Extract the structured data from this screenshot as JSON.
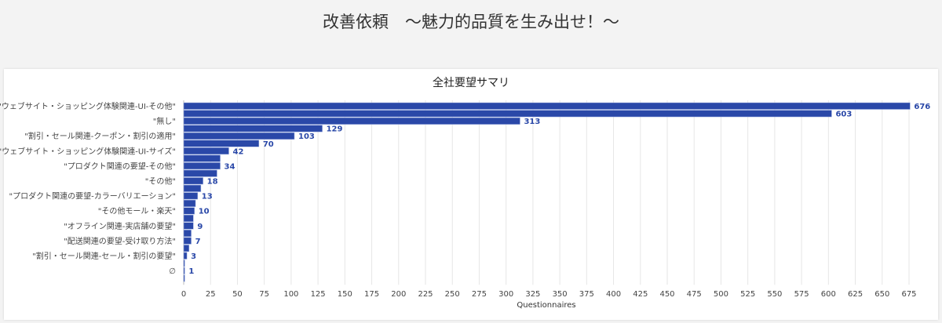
{
  "page": {
    "title": "改善依頼　〜魅力的品質を生み出せ！〜"
  },
  "chart_data": {
    "type": "bar",
    "orientation": "horizontal",
    "title": "全社要望サマリ",
    "xlabel": "Questionnaires",
    "ylabel": "",
    "xlim": [
      0,
      690
    ],
    "x_ticks": [
      0,
      25,
      50,
      75,
      100,
      125,
      150,
      175,
      200,
      225,
      250,
      275,
      300,
      325,
      350,
      375,
      400,
      425,
      450,
      475,
      500,
      525,
      550,
      575,
      600,
      625,
      650,
      675
    ],
    "grid": true,
    "legend": "none",
    "bar_color": "#2a48a8",
    "categories": [
      "\"ウェブサイト・ショッピング体験関連-UI-その他\"",
      "",
      "\"無し\"",
      "",
      "\"割引・セール関連-クーポン・割引の適用\"",
      "",
      "\"ウェブサイト・ショッピング体験関連-UI-サイズ\"",
      "",
      "\"プロダクト関連の要望-その他\"",
      "",
      "\"その他\"",
      "",
      "\"プロダクト関連の要望-カラーバリエーション\"",
      "",
      "\"その他モール・楽天\"",
      "",
      "\"オフライン関連-実店舗の要望\"",
      "",
      "\"配送関連の要望-受け取り方法\"",
      "",
      "\"割引・セール関連-セール・割引の要望\"",
      "",
      "∅",
      ""
    ],
    "values": [
      676,
      603,
      313,
      129,
      103,
      70,
      42,
      34,
      34,
      31,
      18,
      16,
      13,
      11,
      10,
      9,
      9,
      7,
      7,
      5,
      3,
      1,
      1,
      1
    ],
    "data_labels": [
      "676",
      "603",
      "313",
      "129",
      "103",
      "70",
      "42",
      null,
      "34",
      null,
      "18",
      null,
      "13",
      null,
      "10",
      null,
      "9",
      null,
      "7",
      null,
      "3",
      null,
      "1",
      null
    ]
  }
}
